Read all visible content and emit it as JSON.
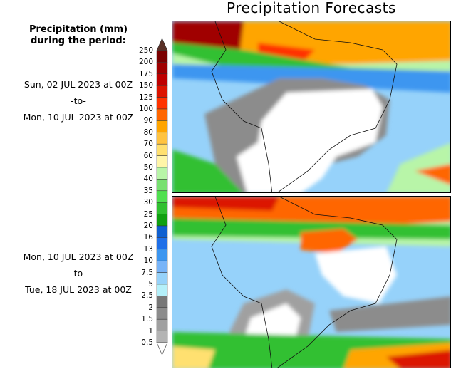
{
  "title": "Precipitation Forecasts",
  "legend": {
    "heading_line1": "Precipitation (mm)",
    "heading_line2": "during the period:",
    "labels": [
      "250",
      "200",
      "175",
      "150",
      "125",
      "100",
      "90",
      "80",
      "70",
      "60",
      "50",
      "40",
      "35",
      "30",
      "25",
      "20",
      "16",
      "13",
      "10",
      "7.5",
      "5",
      "2.5",
      "2",
      "1.5",
      "1",
      "0.5"
    ],
    "colors": [
      "#7a0000",
      "#a00000",
      "#be0000",
      "#dc1400",
      "#ff3300",
      "#ff6600",
      "#ffa500",
      "#ffc340",
      "#ffe070",
      "#fff5a8",
      "#b8f5a8",
      "#78e070",
      "#50e050",
      "#30c030",
      "#10a010",
      "#1060d0",
      "#2070e8",
      "#3c96f0",
      "#78b4f8",
      "#96d2fa",
      "#b4f0fa",
      "#787878",
      "#8c8c8c",
      "#a0a0a0",
      "#b4b4b4"
    ],
    "over_color": "#5a3027",
    "under_color": "#ffffff"
  },
  "periods": [
    {
      "start": "Sun, 02 JUL 2023 at 00Z",
      "sep": "-to-",
      "end": "Mon, 10 JUL 2023 at 00Z"
    },
    {
      "start": "Mon, 10 JUL 2023 at 00Z",
      "sep": "-to-",
      "end": "Tue, 18 JUL 2023 at 00Z"
    }
  ]
}
